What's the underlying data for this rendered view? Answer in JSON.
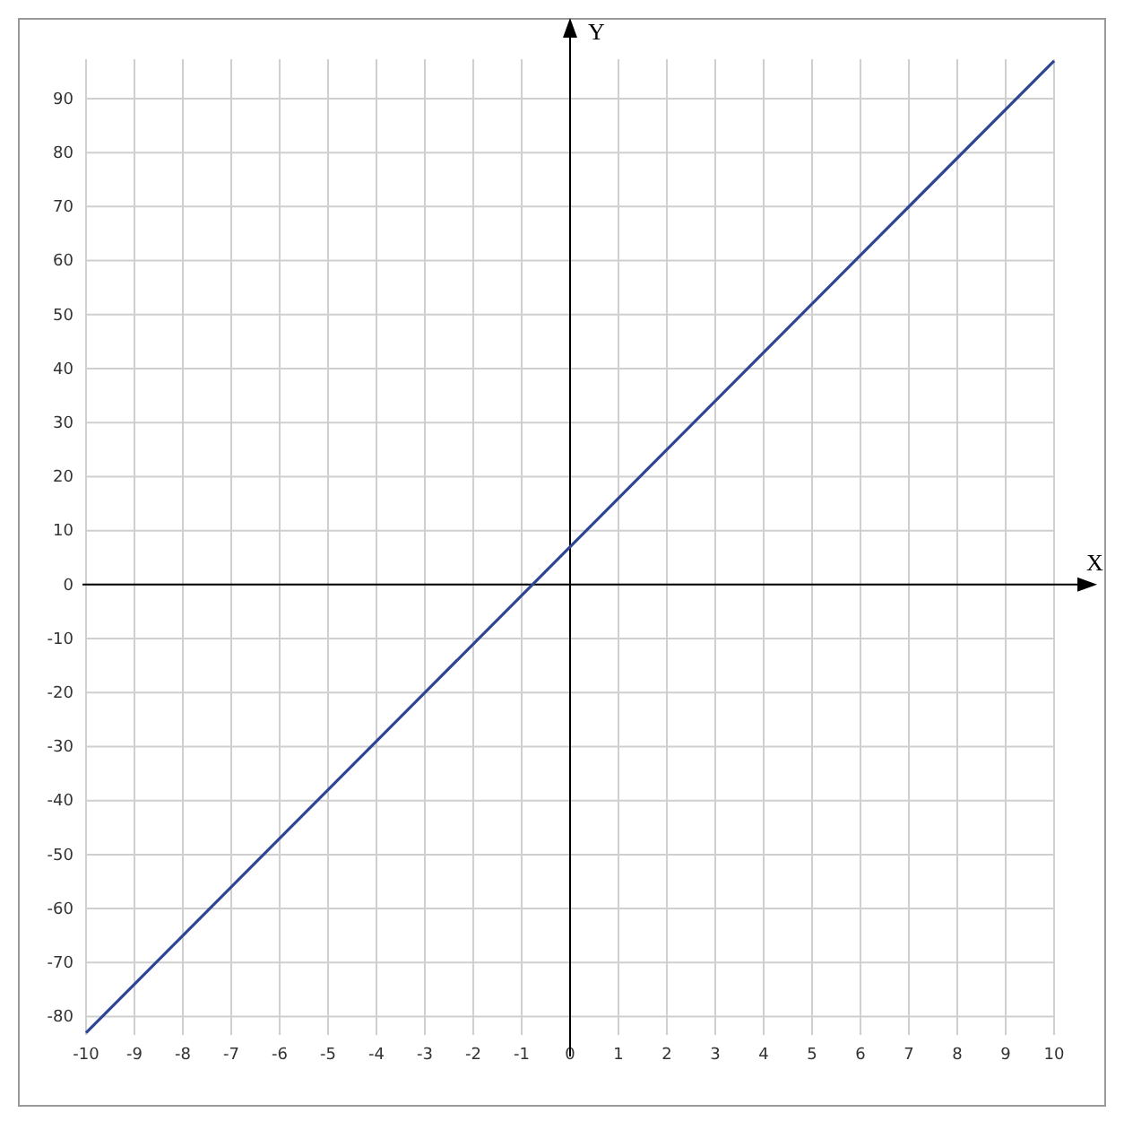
{
  "chart_data": {
    "type": "line",
    "xlabel": "X",
    "ylabel": "Y",
    "x": [
      -10,
      10
    ],
    "series": [
      {
        "color": "#2e4593",
        "values": [
          -83,
          97
        ]
      }
    ],
    "xlim": [
      -10,
      10
    ],
    "ylim": [
      -83.4,
      97.3
    ],
    "xticks": [
      -10,
      -9,
      -8,
      -7,
      -6,
      -5,
      -4,
      -3,
      -2,
      -1,
      0,
      1,
      2,
      3,
      4,
      5,
      6,
      7,
      8,
      9,
      10
    ],
    "yticks": [
      -80,
      -70,
      -60,
      -50,
      -40,
      -30,
      -20,
      -10,
      0,
      10,
      20,
      30,
      40,
      50,
      60,
      70,
      80,
      90
    ],
    "grid": true,
    "marker": "none",
    "line_style": "solid"
  }
}
